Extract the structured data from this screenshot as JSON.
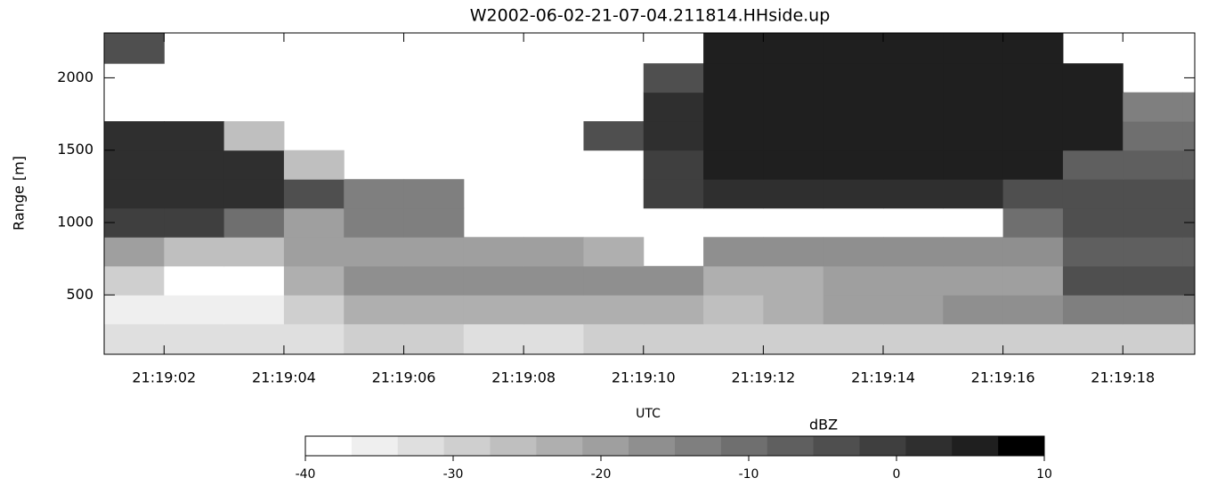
{
  "chart_data": {
    "type": "heatmap",
    "title": "W2002-06-02-21-07-04.211814.HHside.up",
    "xlabel": "UTC",
    "ylabel": "Range [m]",
    "colorbar_label": "dBZ",
    "xlim": [
      1.0,
      19.2
    ],
    "ylim": [
      90,
      2310
    ],
    "xticks": [
      {
        "value": 2,
        "label": "21:19:02"
      },
      {
        "value": 4,
        "label": "21:19:04"
      },
      {
        "value": 6,
        "label": "21:19:06"
      },
      {
        "value": 8,
        "label": "21:19:08"
      },
      {
        "value": 10,
        "label": "21:19:10"
      },
      {
        "value": 12,
        "label": "21:19:12"
      },
      {
        "value": 14,
        "label": "21:19:14"
      },
      {
        "value": 16,
        "label": "21:19:16"
      },
      {
        "value": 18,
        "label": "21:19:18"
      }
    ],
    "yticks": [
      500,
      1000,
      1500,
      2000
    ],
    "x_edges": [
      1.0,
      2,
      3,
      4,
      5,
      6,
      7,
      8,
      9,
      10,
      11,
      12,
      13,
      14,
      15,
      16,
      17,
      18,
      19,
      19.2
    ],
    "y_edges": [
      90,
      300,
      500,
      700,
      900,
      1100,
      1300,
      1500,
      1700,
      1900,
      2100,
      2310
    ],
    "z": [
      [
        -32,
        -33,
        -32,
        -32,
        -30,
        -30,
        -31,
        -31,
        -30,
        -30,
        -29,
        -29,
        -29,
        -29,
        -28,
        -28,
        -28,
        -28,
        -28
      ],
      [
        -35,
        -36,
        -36,
        -28,
        -22,
        -22,
        -22,
        -23,
        -23,
        -24,
        -26,
        -22,
        -20,
        -20,
        -18,
        -17,
        -15,
        -14,
        -14
      ],
      [
        -30,
        -38,
        -38,
        -22,
        -18,
        -18,
        -18,
        -18,
        -18,
        -18,
        -22,
        -22,
        -20,
        -20,
        -20,
        -20,
        -5,
        -5,
        -5
      ],
      [
        -20,
        -25,
        -25,
        -20,
        -20,
        -20,
        -20,
        -20,
        -22,
        null,
        -18,
        -18,
        -18,
        -18,
        -18,
        -18,
        -8,
        -8,
        -8
      ],
      [
        -2,
        -2,
        -10,
        -20,
        -15,
        -15,
        null,
        null,
        null,
        null,
        null,
        null,
        null,
        null,
        null,
        -10,
        -3,
        -3,
        -3
      ],
      [
        2,
        2,
        2,
        -5,
        -15,
        -15,
        null,
        null,
        null,
        -2,
        3,
        3,
        3,
        3,
        3,
        -5,
        -5,
        -5,
        -5
      ],
      [
        3,
        3,
        3,
        -25,
        null,
        null,
        null,
        null,
        null,
        0,
        4,
        4,
        4,
        4,
        4,
        4,
        -8,
        -8,
        -8
      ],
      [
        2,
        2,
        -25,
        null,
        null,
        null,
        null,
        null,
        -5,
        2,
        4,
        4,
        4,
        4,
        4,
        4,
        4,
        -10,
        -10
      ],
      [
        null,
        null,
        null,
        null,
        null,
        null,
        null,
        null,
        null,
        2,
        5,
        5,
        5,
        5,
        5,
        5,
        5,
        -15,
        -15
      ],
      [
        null,
        null,
        null,
        null,
        null,
        null,
        null,
        null,
        null,
        -5,
        5,
        5,
        5,
        5,
        5,
        5,
        5,
        null,
        null
      ],
      [
        -5,
        null,
        null,
        null,
        null,
        null,
        null,
        null,
        null,
        null,
        5,
        5,
        5,
        5,
        5,
        5,
        null,
        null,
        null
      ]
    ],
    "clim": [
      -40,
      10
    ],
    "cticks": [
      -40,
      -30,
      -20,
      -10,
      0,
      10
    ],
    "colors": [
      "#ffffff",
      "#efefef",
      "#dfdfdf",
      "#cfcfcf",
      "#bfbfbf",
      "#afafaf",
      "#9f9f9f",
      "#8f8f8f",
      "#7f7f7f",
      "#6f6f6f",
      "#5f5f5f",
      "#4f4f4f",
      "#3f3f3f",
      "#2f2f2f",
      "#1f1f1f",
      "#000000"
    ]
  }
}
